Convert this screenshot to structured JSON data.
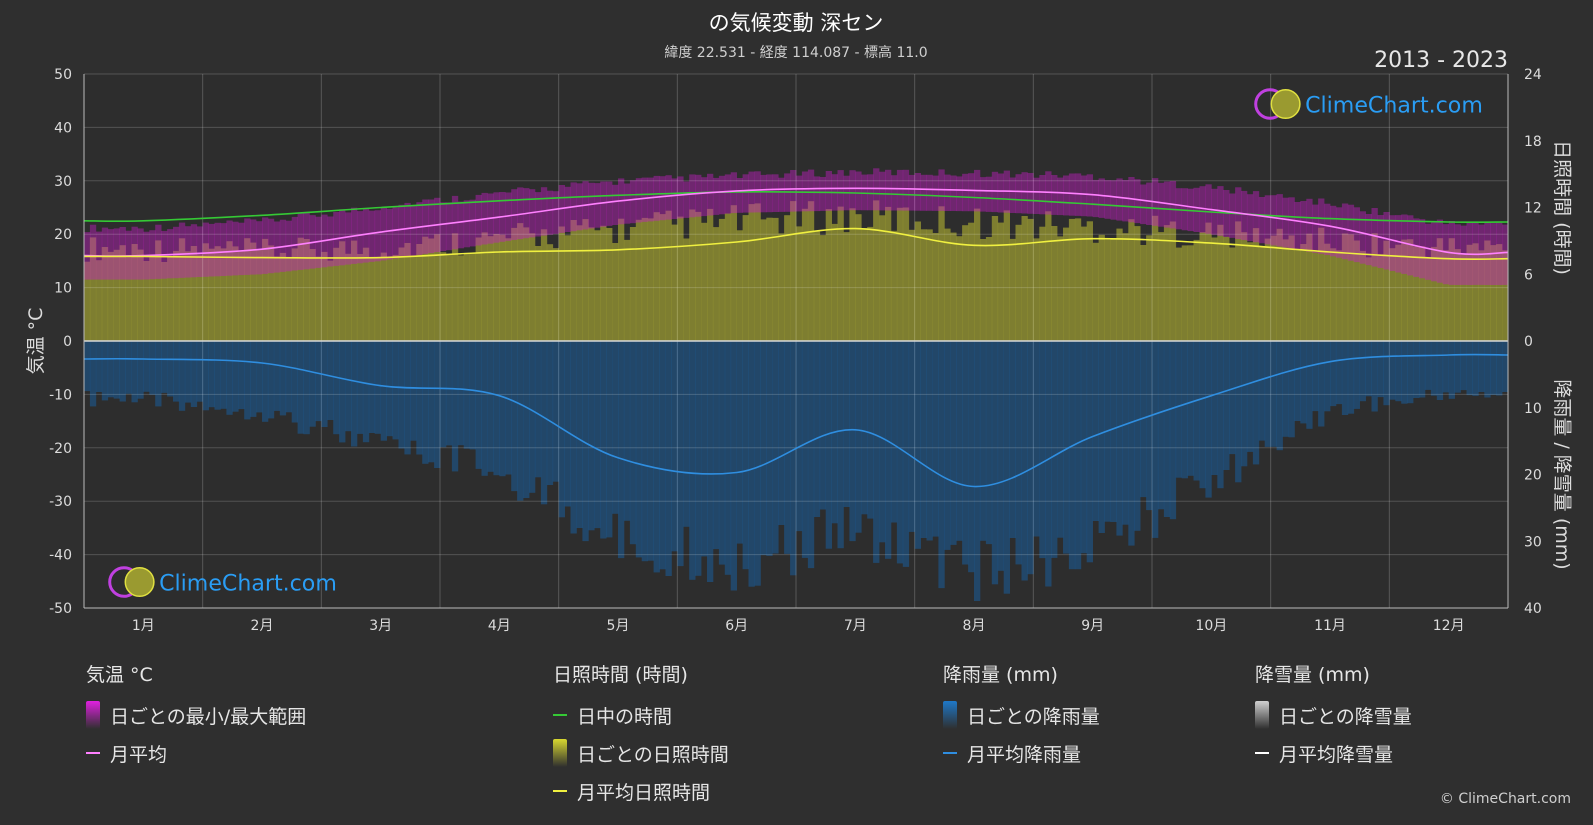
{
  "header": {
    "title": "の気候変動 深セン",
    "subtitle": "緯度 22.531 - 経度 114.087 - 標高 11.0",
    "period": "2013 - 2023"
  },
  "watermark": {
    "text": "ClimeChart.com"
  },
  "copyright": "© ClimeChart.com",
  "chart_data": {
    "type": "area",
    "months": [
      "1月",
      "2月",
      "3月",
      "4月",
      "5月",
      "6月",
      "7月",
      "8月",
      "9月",
      "10月",
      "11月",
      "12月"
    ],
    "axes": {
      "left": {
        "label": "気温 °C",
        "range": [
          -50,
          50
        ],
        "ticks": [
          "50",
          "40",
          "30",
          "20",
          "10",
          "0",
          "-10",
          "-20",
          "-30",
          "-40",
          "-50"
        ]
      },
      "right_top": {
        "label": "日照時間 (時間)",
        "range": [
          0,
          24
        ],
        "ticks": [
          "24",
          "18",
          "12",
          "6",
          "0"
        ]
      },
      "right_bottom": {
        "label": "降雨量 / 降雪量 (mm)",
        "range": [
          0,
          40
        ],
        "ticks": [
          "10",
          "20",
          "30",
          "40"
        ]
      }
    },
    "grid": true,
    "series": [
      {
        "name": "日中の時間",
        "axis": "right_top",
        "color": "#35c935",
        "values": [
          10.8,
          11.3,
          12.0,
          12.6,
          13.1,
          13.4,
          13.3,
          12.9,
          12.3,
          11.6,
          11.0,
          10.7
        ]
      },
      {
        "name": "月平均",
        "axis": "left",
        "color": "#ff80ff",
        "values": [
          16.0,
          17.2,
          20.4,
          23.2,
          26.2,
          28.1,
          28.6,
          28.2,
          27.4,
          24.6,
          21.5,
          16.6
        ]
      },
      {
        "name": "月平均日照時間",
        "axis": "right_top",
        "color": "#f0f040",
        "values": [
          7.6,
          7.5,
          7.5,
          8.0,
          8.2,
          8.9,
          10.1,
          8.6,
          9.2,
          8.8,
          8.0,
          7.4
        ]
      },
      {
        "name": "月平均降雨量",
        "axis": "right_bottom",
        "color": "#2f8ee0",
        "values": [
          2.7,
          3.3,
          6.7,
          8.2,
          17.5,
          19.7,
          13.3,
          21.8,
          14.3,
          8.2,
          3.1,
          2.1
        ]
      }
    ],
    "bands": {
      "temp_max": [
        21.0,
        22.2,
        25.0,
        27.5,
        29.8,
        30.8,
        31.5,
        31.3,
        30.8,
        28.6,
        25.6,
        21.8
      ],
      "temp_min": [
        11.5,
        12.5,
        15.0,
        18.5,
        21.8,
        24.0,
        24.5,
        24.3,
        23.3,
        20.0,
        16.0,
        10.5
      ],
      "sunshine_daily_max": [
        9.5,
        9.2,
        9.6,
        10.5,
        11.5,
        12.4,
        12.8,
        12.2,
        11.7,
        11.0,
        10.2,
        9.6
      ],
      "rain_daily_max": [
        10,
        12,
        18,
        22,
        34,
        38,
        32,
        40,
        36,
        24,
        12,
        9
      ]
    },
    "legend": [
      {
        "title": "気温 °C",
        "items": [
          {
            "label": "日ごとの最小/最大範囲",
            "kind": "rect",
            "color": "#e020e0"
          },
          {
            "label": "月平均",
            "kind": "line",
            "color": "#ff80ff"
          }
        ]
      },
      {
        "title": "日照時間 (時間)",
        "items": [
          {
            "label": "日中の時間",
            "kind": "line",
            "color": "#35c935"
          },
          {
            "label": "日ごとの日照時間",
            "kind": "rect",
            "color": "#d8d830"
          },
          {
            "label": "月平均日照時間",
            "kind": "line",
            "color": "#f0f040"
          }
        ]
      },
      {
        "title": "降雨量 (mm)",
        "items": [
          {
            "label": "日ごとの降雨量",
            "kind": "rect",
            "color": "#1e78c8"
          },
          {
            "label": "月平均降雨量",
            "kind": "line",
            "color": "#2f8ee0"
          }
        ]
      },
      {
        "title": "降雪量 (mm)",
        "items": [
          {
            "label": "日ごとの降雪量",
            "kind": "rect",
            "color": "#d0d0d0"
          },
          {
            "label": "月平均降雪量",
            "kind": "line",
            "color": "#ffffff"
          }
        ]
      }
    ]
  }
}
